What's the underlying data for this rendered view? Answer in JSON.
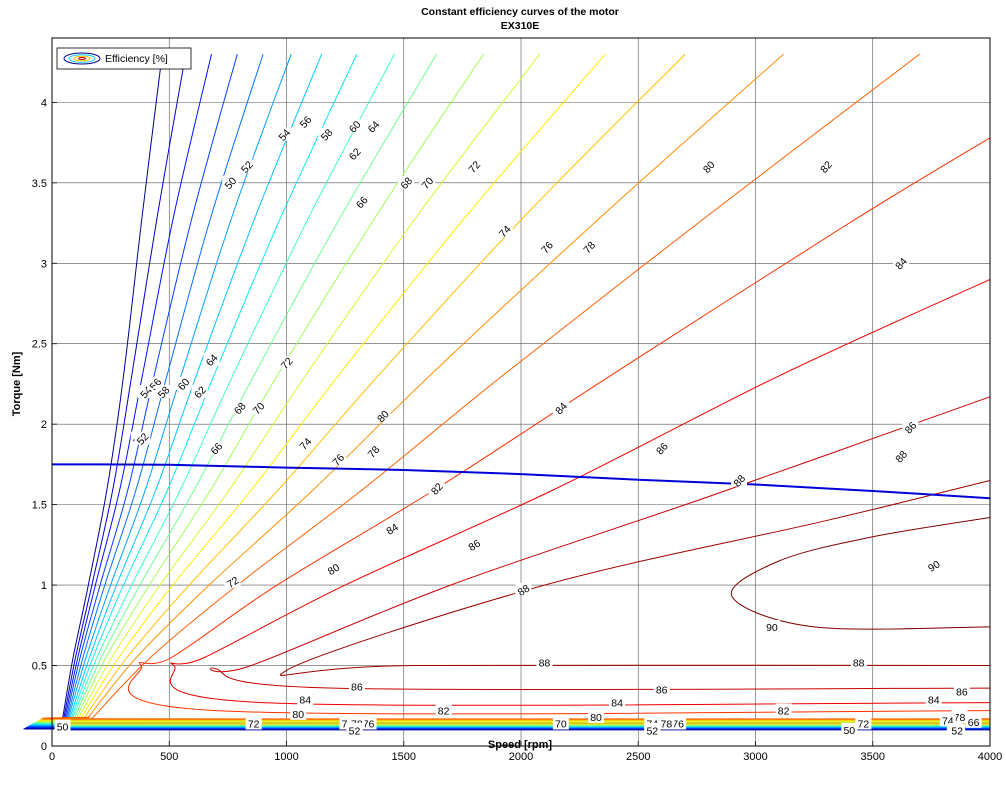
{
  "chart_data": {
    "type": "contour",
    "title": "Constant efficiency curves of the motor",
    "subtitle": "EX310E",
    "xlabel": "Speed [rpm]",
    "ylabel": "Torque [Nm]",
    "xlim": [
      0,
      4000
    ],
    "ylim": [
      0,
      4.4
    ],
    "xticks": [
      0,
      500,
      1000,
      1500,
      2000,
      2500,
      3000,
      3500,
      4000
    ],
    "yticks": [
      0,
      0.5,
      1,
      1.5,
      2,
      2.5,
      3,
      3.5,
      4
    ],
    "ytick_labels": [
      "0",
      "0.5",
      "1",
      "1.5",
      "2",
      "2.5",
      "3",
      "3.5",
      "4"
    ],
    "grid": true,
    "legend": {
      "position": "top-left",
      "entries": [
        "Efficiency [%]"
      ]
    },
    "levels": [
      50,
      52,
      54,
      56,
      58,
      60,
      62,
      64,
      66,
      68,
      70,
      72,
      74,
      76,
      78,
      80,
      82,
      84,
      86,
      88,
      90
    ],
    "colors": {
      "50": "#00008f",
      "52": "#0000c8",
      "54": "#0010ff",
      "56": "#0040ff",
      "58": "#0070ff",
      "60": "#00a0ff",
      "62": "#00c8ff",
      "64": "#10e8ef",
      "66": "#40ffbf",
      "68": "#70ff8f",
      "70": "#a0ff60",
      "72": "#d0ff30",
      "74": "#fff000",
      "76": "#ffc000",
      "78": "#ff9000",
      "80": "#ff6000",
      "82": "#ff3000",
      "84": "#f00000",
      "86": "#c80000",
      "88": "#a00000",
      "90": "#800000"
    },
    "upper_branch": {
      "50": [
        [
          45,
          0.17
        ],
        [
          90,
          0.55
        ],
        [
          155,
          1.0
        ],
        [
          235,
          1.6
        ],
        [
          305,
          2.3
        ],
        [
          385,
          3.3
        ],
        [
          470,
          4.3
        ]
      ],
      "52": [
        [
          50,
          0.17
        ],
        [
          100,
          0.55
        ],
        [
          170,
          1.0
        ],
        [
          260,
          1.6
        ],
        [
          340,
          2.3
        ],
        [
          450,
          3.3
        ],
        [
          570,
          4.3
        ]
      ],
      "54": [
        [
          55,
          0.17
        ],
        [
          110,
          0.55
        ],
        [
          185,
          1.0
        ],
        [
          290,
          1.6
        ],
        [
          385,
          2.3
        ],
        [
          520,
          3.3
        ],
        [
          680,
          4.3
        ]
      ],
      "56": [
        [
          60,
          0.17
        ],
        [
          120,
          0.55
        ],
        [
          205,
          1.0
        ],
        [
          325,
          1.6
        ],
        [
          435,
          2.3
        ],
        [
          600,
          3.3
        ],
        [
          790,
          4.3
        ]
      ],
      "58": [
        [
          65,
          0.17
        ],
        [
          132,
          0.55
        ],
        [
          225,
          1.0
        ],
        [
          360,
          1.6
        ],
        [
          490,
          2.3
        ],
        [
          680,
          3.3
        ],
        [
          900,
          4.3
        ]
      ],
      "60": [
        [
          70,
          0.17
        ],
        [
          145,
          0.55
        ],
        [
          250,
          1.0
        ],
        [
          400,
          1.6
        ],
        [
          550,
          2.3
        ],
        [
          770,
          3.3
        ],
        [
          1020,
          4.3
        ]
      ],
      "62": [
        [
          76,
          0.17
        ],
        [
          160,
          0.55
        ],
        [
          275,
          1.0
        ],
        [
          445,
          1.6
        ],
        [
          615,
          2.3
        ],
        [
          870,
          3.3
        ],
        [
          1150,
          4.3
        ]
      ],
      "64": [
        [
          82,
          0.17
        ],
        [
          175,
          0.55
        ],
        [
          305,
          1.0
        ],
        [
          495,
          1.6
        ],
        [
          690,
          2.3
        ],
        [
          980,
          3.3
        ],
        [
          1300,
          4.3
        ]
      ],
      "66": [
        [
          88,
          0.17
        ],
        [
          192,
          0.55
        ],
        [
          340,
          1.0
        ],
        [
          550,
          1.6
        ],
        [
          770,
          2.3
        ],
        [
          1100,
          3.3
        ],
        [
          1460,
          4.3
        ]
      ],
      "68": [
        [
          95,
          0.17
        ],
        [
          210,
          0.55
        ],
        [
          375,
          1.0
        ],
        [
          610,
          1.6
        ],
        [
          860,
          2.3
        ],
        [
          1235,
          3.3
        ],
        [
          1640,
          4.3
        ]
      ],
      "70": [
        [
          103,
          0.17
        ],
        [
          230,
          0.55
        ],
        [
          415,
          1.0
        ],
        [
          680,
          1.6
        ],
        [
          960,
          2.3
        ],
        [
          1385,
          3.3
        ],
        [
          1840,
          4.3
        ]
      ],
      "72": [
        [
          112,
          0.17
        ],
        [
          255,
          0.55
        ],
        [
          460,
          1.0
        ],
        [
          760,
          1.6
        ],
        [
          1080,
          2.3
        ],
        [
          1560,
          3.3
        ],
        [
          2080,
          4.3
        ]
      ],
      "74": [
        [
          122,
          0.17
        ],
        [
          285,
          0.55
        ],
        [
          515,
          1.0
        ],
        [
          855,
          1.6
        ],
        [
          1220,
          2.3
        ],
        [
          1770,
          3.3
        ],
        [
          2360,
          4.3
        ]
      ],
      "76": [
        [
          135,
          0.17
        ],
        [
          320,
          0.55
        ],
        [
          585,
          1.0
        ],
        [
          970,
          1.6
        ],
        [
          1390,
          2.3
        ],
        [
          2020,
          3.3
        ],
        [
          2700,
          4.3
        ]
      ],
      "78": [
        [
          150,
          0.17
        ],
        [
          360,
          0.55
        ],
        [
          670,
          1.0
        ],
        [
          1120,
          1.6
        ],
        [
          1610,
          2.3
        ],
        [
          2350,
          3.3
        ],
        [
          3120,
          4.3
        ]
      ],
      "80": [
        [
          170,
          0.17
        ],
        [
          420,
          0.55
        ],
        [
          790,
          1.0
        ],
        [
          1330,
          1.6
        ],
        [
          1920,
          2.3
        ],
        [
          2800,
          3.3
        ],
        [
          3700,
          4.3
        ]
      ],
      "82": [
        [
          200,
          0.17
        ],
        [
          510,
          0.55
        ],
        [
          960,
          1.0
        ],
        [
          1640,
          1.6
        ],
        [
          2380,
          2.3
        ],
        [
          3400,
          3.25
        ],
        [
          4000,
          3.78
        ]
      ],
      "84": [
        [
          250,
          0.17
        ],
        [
          650,
          0.55
        ],
        [
          1250,
          1.0
        ],
        [
          2150,
          1.6
        ],
        [
          3100,
          2.3
        ],
        [
          4000,
          2.9
        ]
      ],
      "86": [
        [
          330,
          0.17
        ],
        [
          850,
          0.5
        ],
        [
          1700,
          1.0
        ],
        [
          2800,
          1.55
        ],
        [
          4000,
          2.17
        ]
      ],
      "88": [
        [
          520,
          0.17
        ],
        [
          1000,
          0.47
        ],
        [
          2100,
          1.0
        ],
        [
          3300,
          1.4
        ],
        [
          4000,
          1.65
        ]
      ],
      "90": [
        [
          2900,
          0.93
        ],
        [
          3100,
          1.15
        ],
        [
          3500,
          1.3
        ],
        [
          4000,
          1.42
        ]
      ]
    },
    "upper_labels": [
      [
        50,
        760,
        3.5
      ],
      [
        52,
        830,
        3.6
      ],
      [
        54,
        990,
        3.8
      ],
      [
        56,
        1080,
        3.88
      ],
      [
        58,
        1170,
        3.8
      ],
      [
        60,
        1290,
        3.85
      ],
      [
        62,
        1290,
        3.68
      ],
      [
        64,
        1370,
        3.85
      ],
      [
        66,
        1320,
        3.38
      ],
      [
        68,
        1510,
        3.5
      ],
      [
        70,
        1600,
        3.5
      ],
      [
        72,
        1800,
        3.6
      ],
      [
        74,
        1930,
        3.2
      ],
      [
        76,
        2110,
        3.1
      ],
      [
        78,
        2290,
        3.1
      ],
      [
        80,
        2800,
        3.6
      ],
      [
        82,
        3300,
        3.6
      ],
      [
        84,
        3620,
        3.0
      ],
      [
        86,
        3660,
        1.98
      ],
      [
        88,
        3620,
        1.8
      ],
      [
        90,
        3760,
        1.12
      ],
      [
        50,
        370,
        1.91
      ],
      [
        52,
        385,
        1.91
      ],
      [
        54,
        400,
        2.2
      ],
      [
        56,
        440,
        2.25
      ],
      [
        58,
        475,
        2.2
      ],
      [
        60,
        560,
        2.25
      ],
      [
        62,
        630,
        2.2
      ],
      [
        64,
        680,
        2.4
      ],
      [
        66,
        700,
        1.85
      ],
      [
        68,
        800,
        2.1
      ],
      [
        70,
        880,
        2.1
      ],
      [
        72,
        1000,
        2.38
      ],
      [
        74,
        1080,
        1.88
      ],
      [
        76,
        1220,
        1.78
      ],
      [
        78,
        1370,
        1.83
      ],
      [
        80,
        1410,
        2.05
      ],
      [
        82,
        1640,
        1.6
      ],
      [
        84,
        2170,
        2.1
      ],
      [
        86,
        2600,
        1.85
      ],
      [
        88,
        2930,
        1.65
      ],
      [
        80,
        1200,
        1.1
      ],
      [
        72,
        770,
        1.02
      ],
      [
        84,
        1450,
        1.35
      ],
      [
        86,
        1800,
        1.25
      ],
      [
        88,
        2010,
        0.97
      ]
    ],
    "low_torque_region": {
      "90": {
        "x": [
          3250,
          4000
        ],
        "y": 0.74,
        "start": [
          2900,
          0.93
        ]
      },
      "88": {
        "x": [
          1550,
          4000
        ],
        "y": 0.5,
        "start": [
          1000,
          0.47
        ]
      },
      "86": {
        "x": [
          1200,
          4000
        ],
        "y": 0.36,
        "start": [
          700,
          0.48
        ]
      },
      "84": {
        "x": [
          900,
          4000
        ],
        "y": 0.27,
        "start": [
          520,
          0.5
        ]
      },
      "82": {
        "x": [
          700,
          4000
        ],
        "y": 0.22,
        "start": [
          380,
          0.5
        ]
      }
    },
    "low_labels": [
      [
        90,
        3070,
        0.74
      ],
      [
        88,
        2100,
        0.52
      ],
      [
        88,
        3440,
        0.52
      ],
      [
        86,
        1300,
        0.37
      ],
      [
        86,
        2600,
        0.35
      ],
      [
        86,
        3880,
        0.34
      ],
      [
        84,
        1080,
        0.29
      ],
      [
        84,
        2410,
        0.27
      ],
      [
        84,
        3760,
        0.29
      ],
      [
        82,
        1670,
        0.22
      ],
      [
        82,
        3120,
        0.22
      ],
      [
        80,
        1050,
        0.2
      ],
      [
        80,
        2320,
        0.18
      ],
      [
        78,
        3870,
        0.18
      ],
      [
        74,
        3820,
        0.16
      ],
      [
        66,
        3930,
        0.15
      ],
      [
        72,
        860,
        0.14
      ],
      [
        74,
        1260,
        0.14
      ],
      [
        76,
        1350,
        0.14
      ],
      [
        78,
        1300,
        0.14
      ],
      [
        50,
        1290,
        0.1
      ],
      [
        52,
        1290,
        0.095
      ],
      [
        74,
        2560,
        0.14
      ],
      [
        76,
        2670,
        0.14
      ],
      [
        78,
        2620,
        0.14
      ],
      [
        70,
        2170,
        0.14
      ],
      [
        50,
        2560,
        0.1
      ],
      [
        52,
        2560,
        0.095
      ],
      [
        72,
        3460,
        0.14
      ],
      [
        50,
        3400,
        0.1
      ],
      [
        50,
        3850,
        0.1
      ],
      [
        52,
        3860,
        0.095
      ],
      [
        50,
        45,
        0.12
      ]
    ],
    "max_torque_curve": [
      [
        0,
        1.75
      ],
      [
        500,
        1.748
      ],
      [
        1000,
        1.73
      ],
      [
        1500,
        1.715
      ],
      [
        2000,
        1.69
      ],
      [
        2500,
        1.655
      ],
      [
        3000,
        1.625
      ],
      [
        3500,
        1.585
      ],
      [
        4000,
        1.54
      ]
    ],
    "max_torque_color": "#0000d8"
  }
}
